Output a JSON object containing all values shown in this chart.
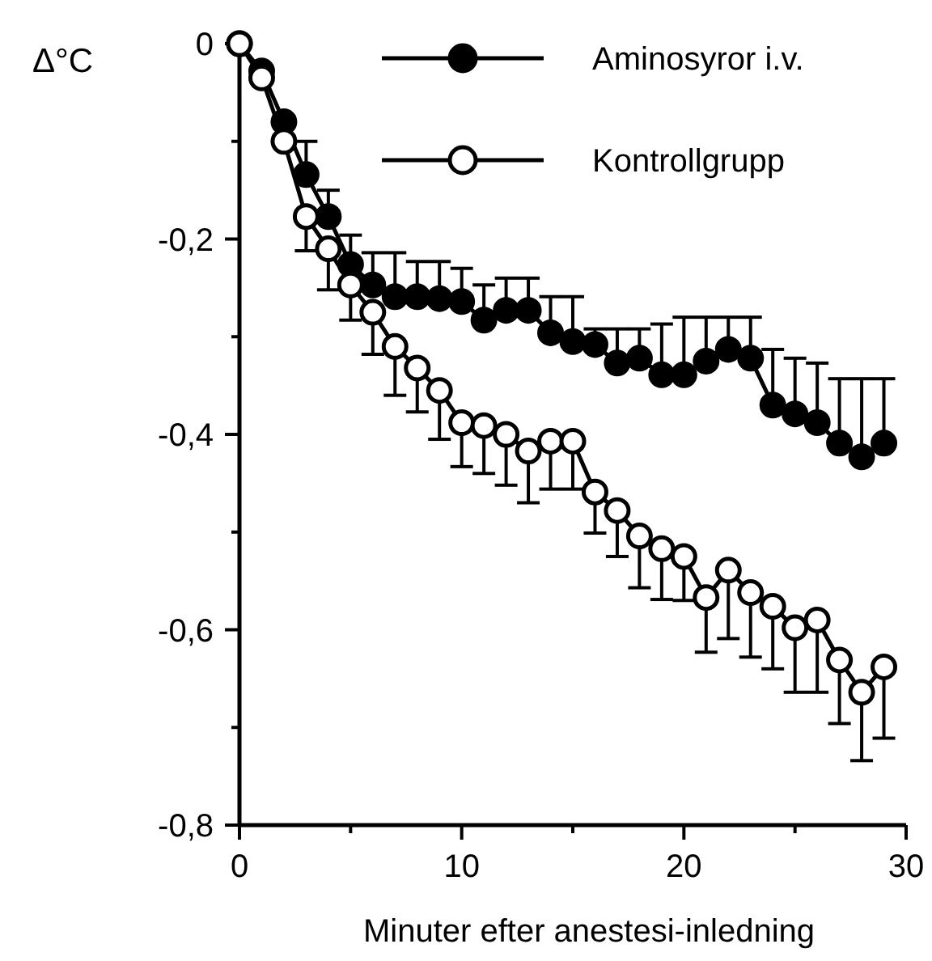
{
  "chart_data": {
    "type": "line",
    "xlabel": "Minuter efter anestesi-inledning",
    "ylabel": "Δ°C",
    "x": [
      0,
      1,
      2,
      3,
      4,
      5,
      6,
      7,
      8,
      9,
      10,
      11,
      12,
      13,
      14,
      15,
      16,
      17,
      18,
      19,
      20,
      21,
      22,
      23,
      24,
      25,
      26,
      27,
      28,
      29
    ],
    "xlim": [
      0,
      30
    ],
    "xticks": [
      0,
      {
        "value": 5,
        "label": null
      },
      10,
      {
        "value": 15,
        "label": null
      },
      20,
      {
        "value": 25,
        "label": null
      },
      30
    ],
    "ylim": [
      -0.8,
      0
    ],
    "yticks": [
      {
        "value": -0.8,
        "label": "-0,8"
      },
      {
        "value": -0.7,
        "label": null
      },
      {
        "value": -0.6,
        "label": "-0,6"
      },
      {
        "value": -0.5,
        "label": null
      },
      {
        "value": -0.4,
        "label": "-0,4"
      },
      {
        "value": -0.3,
        "label": null
      },
      {
        "value": -0.2,
        "label": "-0,2"
      },
      {
        "value": -0.1,
        "label": null
      },
      0
    ],
    "grid": false,
    "legend": "top right",
    "marker": "circle",
    "line_style": "solid",
    "series": [
      {
        "name": "Aminosyror i.v.",
        "color": "#000000",
        "values": [
          0,
          -0.028,
          -0.08,
          -0.134,
          -0.177,
          -0.226,
          -0.247,
          -0.259,
          -0.259,
          -0.261,
          -0.264,
          -0.283,
          -0.273,
          -0.273,
          -0.296,
          -0.305,
          -0.308,
          -0.327,
          -0.322,
          -0.339,
          -0.339,
          -0.325,
          -0.313,
          -0.322,
          -0.37,
          -0.379,
          -0.388,
          -0.409,
          -0.423,
          -0.409
        ],
        "errors": [
          null,
          null,
          null,
          [
            -0.134,
            -0.1
          ],
          [
            -0.177,
            -0.15
          ],
          [
            -0.226,
            -0.196
          ],
          [
            -0.247,
            -0.214
          ],
          [
            -0.259,
            -0.214
          ],
          [
            -0.259,
            -0.223
          ],
          [
            -0.261,
            -0.223
          ],
          [
            -0.264,
            -0.23
          ],
          [
            -0.283,
            -0.247
          ],
          [
            -0.273,
            -0.24
          ],
          [
            -0.273,
            -0.24
          ],
          [
            -0.296,
            -0.259
          ],
          [
            -0.305,
            -0.259
          ],
          [
            -0.308,
            -0.292
          ],
          [
            -0.327,
            -0.292
          ],
          [
            -0.322,
            -0.292
          ],
          [
            -0.339,
            -0.287
          ],
          [
            -0.339,
            -0.28
          ],
          [
            -0.325,
            -0.28
          ],
          [
            -0.313,
            -0.28
          ],
          [
            -0.322,
            -0.28
          ],
          [
            -0.37,
            -0.313
          ],
          [
            -0.379,
            -0.322
          ],
          [
            -0.388,
            -0.327
          ],
          [
            -0.409,
            -0.343
          ],
          [
            -0.423,
            -0.343
          ],
          [
            -0.409,
            -0.343
          ]
        ]
      },
      {
        "name": "Kontrollgrupp",
        "color": "#000000",
        "values": [
          0,
          -0.035,
          -0.1,
          -0.177,
          -0.21,
          -0.247,
          -0.275,
          -0.31,
          -0.332,
          -0.355,
          -0.388,
          -0.391,
          -0.4,
          -0.417,
          -0.407,
          -0.407,
          -0.459,
          -0.478,
          -0.504,
          -0.517,
          -0.525,
          -0.567,
          -0.539,
          -0.562,
          -0.576,
          -0.598,
          -0.59,
          -0.631,
          -0.664,
          -0.638
        ],
        "errors": [
          null,
          null,
          null,
          [
            -0.212,
            -0.177
          ],
          [
            -0.252,
            -0.21
          ],
          [
            -0.283,
            -0.247
          ],
          [
            -0.318,
            -0.275
          ],
          [
            -0.36,
            -0.31
          ],
          [
            -0.377,
            -0.332
          ],
          [
            -0.405,
            -0.355
          ],
          [
            -0.433,
            -0.388
          ],
          [
            -0.44,
            -0.391
          ],
          [
            -0.452,
            -0.4
          ],
          [
            -0.47,
            -0.417
          ],
          [
            -0.456,
            -0.407
          ],
          [
            -0.456,
            -0.407
          ],
          [
            -0.501,
            -0.459
          ],
          [
            -0.525,
            -0.478
          ],
          [
            -0.557,
            -0.504
          ],
          [
            -0.569,
            -0.517
          ],
          [
            -0.57,
            -0.525
          ],
          [
            -0.623,
            -0.567
          ],
          [
            -0.609,
            -0.539
          ],
          [
            -0.628,
            -0.562
          ],
          [
            -0.64,
            -0.576
          ],
          [
            -0.664,
            -0.598
          ],
          [
            -0.664,
            -0.59
          ],
          [
            -0.696,
            -0.631
          ],
          [
            -0.734,
            -0.664
          ],
          [
            -0.711,
            -0.638
          ]
        ]
      }
    ]
  }
}
